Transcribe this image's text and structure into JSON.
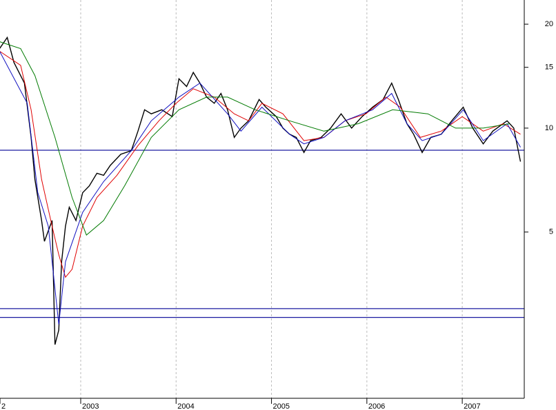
{
  "chart_data": {
    "type": "line",
    "log_scale": true,
    "xlim": [
      2002.154,
      2007.65
    ],
    "ylim": [
      1.65,
      23.5
    ],
    "xticks": [
      {
        "value": 2002.154,
        "label": "2"
      },
      2003,
      2004,
      2005,
      2006,
      2007
    ],
    "yticks": [
      5,
      10,
      15,
      20
    ],
    "grid": true,
    "hlines": [
      {
        "value": 8.63,
        "color": "#1a1aa0"
      },
      {
        "value": 3.0,
        "color": "#1a1aa0"
      },
      {
        "value": 2.83,
        "color": "#1a1aa0"
      }
    ],
    "series": [
      {
        "color": "#000000",
        "x": [
          2002.15,
          2002.23,
          2002.3,
          2002.41,
          2002.48,
          2002.52,
          2002.59,
          2002.62,
          2002.7,
          2002.73,
          2002.77,
          2002.8,
          2002.84,
          2002.88,
          2002.95,
          2003.02,
          2003.09,
          2003.17,
          2003.24,
          2003.31,
          2003.42,
          2003.53,
          2003.6,
          2003.67,
          2003.74,
          2003.85,
          2003.96,
          2004.03,
          2004.11,
          2004.18,
          2004.25,
          2004.32,
          2004.4,
          2004.47,
          2004.54,
          2004.61,
          2004.68,
          2004.76,
          2004.87,
          2004.94,
          2005.05,
          2005.12,
          2005.19,
          2005.26,
          2005.34,
          2005.41,
          2005.52,
          2005.62,
          2005.73,
          2005.84,
          2005.95,
          2006.06,
          2006.17,
          2006.26,
          2006.33,
          2006.42,
          2006.49,
          2006.58,
          2006.67,
          2006.78,
          2006.89,
          2007.01,
          2007.11,
          2007.22,
          2007.32,
          2007.47,
          2007.54,
          2007.58,
          2007.61
        ],
        "values": [
          17.0,
          18.3,
          15.5,
          13.5,
          9.4,
          7.1,
          5.4,
          4.7,
          5.4,
          2.36,
          2.6,
          4.1,
          5.2,
          5.9,
          5.4,
          6.5,
          6.8,
          7.4,
          7.3,
          7.8,
          8.4,
          8.6,
          9.8,
          11.3,
          11.0,
          11.3,
          10.8,
          13.9,
          13.2,
          14.5,
          13.5,
          12.3,
          11.8,
          12.6,
          11.3,
          9.4,
          10.0,
          10.5,
          12.1,
          11.5,
          10.8,
          10.0,
          9.6,
          9.4,
          8.5,
          9.2,
          9.4,
          10.0,
          11.0,
          10.0,
          10.8,
          11.5,
          12.1,
          13.5,
          12.1,
          10.3,
          9.6,
          8.5,
          9.4,
          9.6,
          10.5,
          11.5,
          10.0,
          9.0,
          9.8,
          10.5,
          10.0,
          8.8,
          8.0
        ]
      },
      {
        "color": "#e00000",
        "x": [
          2002.15,
          2002.37,
          2002.48,
          2002.59,
          2002.7,
          2002.77,
          2002.84,
          2002.91,
          2003.02,
          2003.17,
          2003.38,
          2003.6,
          2003.82,
          2004.0,
          2004.18,
          2004.4,
          2004.61,
          2004.76,
          2004.9,
          2005.12,
          2005.34,
          2005.55,
          2005.77,
          2005.99,
          2006.2,
          2006.35,
          2006.56,
          2006.78,
          2007.0,
          2007.22,
          2007.43,
          2007.61
        ],
        "values": [
          16.7,
          15.2,
          11.3,
          7.1,
          5.2,
          4.3,
          3.7,
          3.9,
          5.2,
          6.3,
          7.3,
          8.9,
          10.5,
          11.8,
          13.0,
          12.3,
          11.0,
          10.5,
          11.8,
          11.0,
          9.2,
          9.4,
          10.5,
          11.0,
          12.3,
          11.5,
          9.4,
          9.8,
          10.8,
          9.8,
          10.3,
          9.6
        ]
      },
      {
        "color": "#1010c0",
        "x": [
          2002.15,
          2002.44,
          2002.55,
          2002.66,
          2002.77,
          2002.84,
          2003.02,
          2003.24,
          2003.53,
          2003.74,
          2004.03,
          2004.25,
          2004.54,
          2004.68,
          2004.9,
          2005.19,
          2005.34,
          2005.55,
          2005.77,
          2006.06,
          2006.26,
          2006.42,
          2006.58,
          2006.78,
          2007.01,
          2007.22,
          2007.47,
          2007.61
        ],
        "values": [
          16.7,
          11.8,
          6.5,
          5.2,
          2.7,
          4.1,
          5.7,
          7.0,
          8.6,
          10.5,
          12.3,
          13.5,
          11.0,
          9.8,
          11.5,
          9.6,
          9.0,
          9.4,
          10.5,
          11.3,
          12.6,
          10.3,
          9.2,
          9.6,
          11.3,
          9.2,
          10.3,
          8.8
        ]
      },
      {
        "color": "#007a00",
        "x": [
          2002.15,
          2002.37,
          2002.52,
          2002.73,
          2002.91,
          2003.06,
          2003.24,
          2003.46,
          2003.74,
          2004.03,
          2004.32,
          2004.54,
          2004.83,
          2005.19,
          2005.55,
          2005.91,
          2006.27,
          2006.64,
          2006.93,
          2007.22,
          2007.5
        ],
        "values": [
          17.8,
          17.0,
          14.2,
          9.4,
          6.3,
          4.9,
          5.4,
          6.8,
          9.4,
          11.3,
          12.3,
          12.3,
          11.3,
          10.5,
          9.8,
          10.3,
          11.3,
          11.0,
          10.0,
          10.0,
          10.3
        ]
      }
    ]
  }
}
